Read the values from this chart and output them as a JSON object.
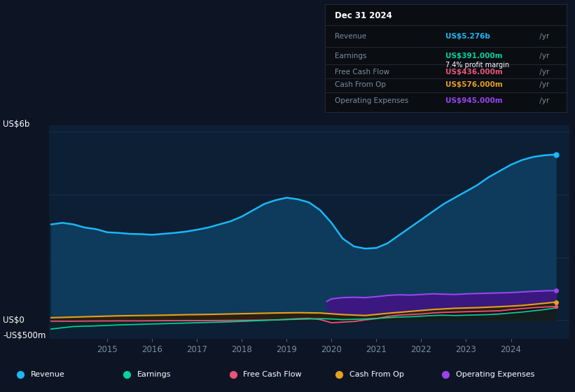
{
  "background_color": "#0d1525",
  "plot_bg_color": "#0d1f35",
  "grid_color": "#1a3050",
  "text_color": "#7a8fa0",
  "ylabel_top": "US$6b",
  "ylabel_zero": "US$0",
  "ylabel_neg": "-US$500m",
  "years_ticks": [
    2015,
    2016,
    2017,
    2018,
    2019,
    2020,
    2021,
    2022,
    2023,
    2024
  ],
  "xlim": [
    2013.7,
    2025.3
  ],
  "ylim": [
    -600,
    6200
  ],
  "revenue_color": "#1ab8f5",
  "revenue_fill_color": "#0e3a5c",
  "earnings_color": "#00d4a0",
  "fcf_color": "#e8557a",
  "cashop_color": "#e8a020",
  "opex_color": "#9944ee",
  "opex_fill_color": "#3a1880",
  "revenue_data_x": [
    2013.75,
    2014.0,
    2014.25,
    2014.5,
    2014.75,
    2015.0,
    2015.25,
    2015.5,
    2015.75,
    2016.0,
    2016.25,
    2016.5,
    2016.75,
    2017.0,
    2017.25,
    2017.5,
    2017.75,
    2018.0,
    2018.25,
    2018.5,
    2018.75,
    2019.0,
    2019.25,
    2019.5,
    2019.75,
    2020.0,
    2020.25,
    2020.5,
    2020.75,
    2021.0,
    2021.25,
    2021.5,
    2021.75,
    2022.0,
    2022.25,
    2022.5,
    2022.75,
    2023.0,
    2023.25,
    2023.5,
    2023.75,
    2024.0,
    2024.25,
    2024.5,
    2024.75,
    2025.0
  ],
  "revenue_data_y": [
    3050,
    3100,
    3050,
    2950,
    2900,
    2800,
    2780,
    2750,
    2740,
    2720,
    2750,
    2780,
    2820,
    2880,
    2950,
    3050,
    3150,
    3300,
    3500,
    3700,
    3820,
    3900,
    3850,
    3750,
    3500,
    3100,
    2600,
    2350,
    2280,
    2300,
    2450,
    2700,
    2950,
    3200,
    3450,
    3700,
    3900,
    4100,
    4300,
    4550,
    4750,
    4950,
    5100,
    5200,
    5250,
    5276
  ],
  "earnings_data_x": [
    2013.75,
    2014.25,
    2014.75,
    2015.25,
    2015.75,
    2016.25,
    2016.75,
    2017.25,
    2017.75,
    2018.25,
    2018.75,
    2019.25,
    2019.75,
    2020.0,
    2020.25,
    2020.5,
    2020.75,
    2021.0,
    2021.25,
    2021.5,
    2021.75,
    2022.0,
    2022.25,
    2022.5,
    2022.75,
    2023.0,
    2023.25,
    2023.5,
    2023.75,
    2024.0,
    2024.25,
    2024.5,
    2024.75,
    2025.0
  ],
  "earnings_data_y": [
    -280,
    -200,
    -180,
    -150,
    -130,
    -110,
    -90,
    -70,
    -50,
    -20,
    10,
    30,
    50,
    40,
    20,
    30,
    40,
    60,
    80,
    100,
    110,
    130,
    150,
    160,
    150,
    160,
    170,
    180,
    200,
    230,
    260,
    300,
    340,
    391
  ],
  "fcf_data_x": [
    2013.75,
    2014.25,
    2014.75,
    2015.25,
    2015.75,
    2016.25,
    2016.75,
    2017.25,
    2017.75,
    2018.25,
    2018.75,
    2019.0,
    2019.25,
    2019.5,
    2019.75,
    2020.0,
    2020.25,
    2020.5,
    2020.75,
    2021.0,
    2021.25,
    2021.5,
    2021.75,
    2022.0,
    2022.25,
    2022.5,
    2022.75,
    2023.0,
    2023.25,
    2023.5,
    2023.75,
    2024.0,
    2024.25,
    2024.5,
    2024.75,
    2025.0
  ],
  "fcf_data_y": [
    -30,
    -30,
    -25,
    -20,
    -20,
    -15,
    -10,
    -10,
    -5,
    0,
    10,
    30,
    50,
    60,
    20,
    -80,
    -60,
    -40,
    10,
    50,
    120,
    160,
    180,
    200,
    230,
    250,
    260,
    270,
    280,
    290,
    300,
    340,
    370,
    400,
    420,
    436
  ],
  "cashop_data_x": [
    2013.75,
    2014.25,
    2014.75,
    2015.25,
    2015.75,
    2016.25,
    2016.75,
    2017.25,
    2017.75,
    2018.25,
    2018.75,
    2019.25,
    2019.75,
    2020.25,
    2020.75,
    2021.25,
    2021.75,
    2022.25,
    2022.75,
    2023.25,
    2023.75,
    2024.25,
    2024.75,
    2025.0
  ],
  "cashop_data_y": [
    80,
    100,
    120,
    140,
    150,
    160,
    175,
    185,
    200,
    215,
    230,
    240,
    230,
    180,
    150,
    220,
    280,
    340,
    380,
    400,
    430,
    470,
    540,
    576
  ],
  "opex_data_x": [
    2019.9,
    2020.0,
    2020.25,
    2020.5,
    2020.75,
    2021.0,
    2021.25,
    2021.5,
    2021.75,
    2022.0,
    2022.25,
    2022.5,
    2022.75,
    2023.0,
    2023.25,
    2023.5,
    2023.75,
    2024.0,
    2024.25,
    2024.5,
    2024.75,
    2025.0
  ],
  "opex_data_y": [
    600,
    680,
    720,
    730,
    720,
    750,
    790,
    810,
    800,
    820,
    840,
    830,
    820,
    840,
    850,
    860,
    870,
    880,
    900,
    920,
    935,
    945
  ],
  "info_box": {
    "date": "Dec 31 2024",
    "revenue_label": "Revenue",
    "revenue_value": "US$5.276b",
    "revenue_color": "#1ab8f5",
    "earnings_label": "Earnings",
    "earnings_value": "US$391.000m",
    "earnings_color": "#00d4a0",
    "margin_text": "7.4% profit margin",
    "fcf_label": "Free Cash Flow",
    "fcf_value": "US$436.000m",
    "fcf_color": "#e8557a",
    "cashop_label": "Cash From Op",
    "cashop_value": "US$576.000m",
    "cashop_color": "#e8a020",
    "opex_label": "Operating Expenses",
    "opex_value": "US$945.000m",
    "opex_color": "#9944ee"
  },
  "legend": [
    {
      "label": "Revenue",
      "color": "#1ab8f5"
    },
    {
      "label": "Earnings",
      "color": "#00d4a0"
    },
    {
      "label": "Free Cash Flow",
      "color": "#e8557a"
    },
    {
      "label": "Cash From Op",
      "color": "#e8a020"
    },
    {
      "label": "Operating Expenses",
      "color": "#9944ee"
    }
  ]
}
